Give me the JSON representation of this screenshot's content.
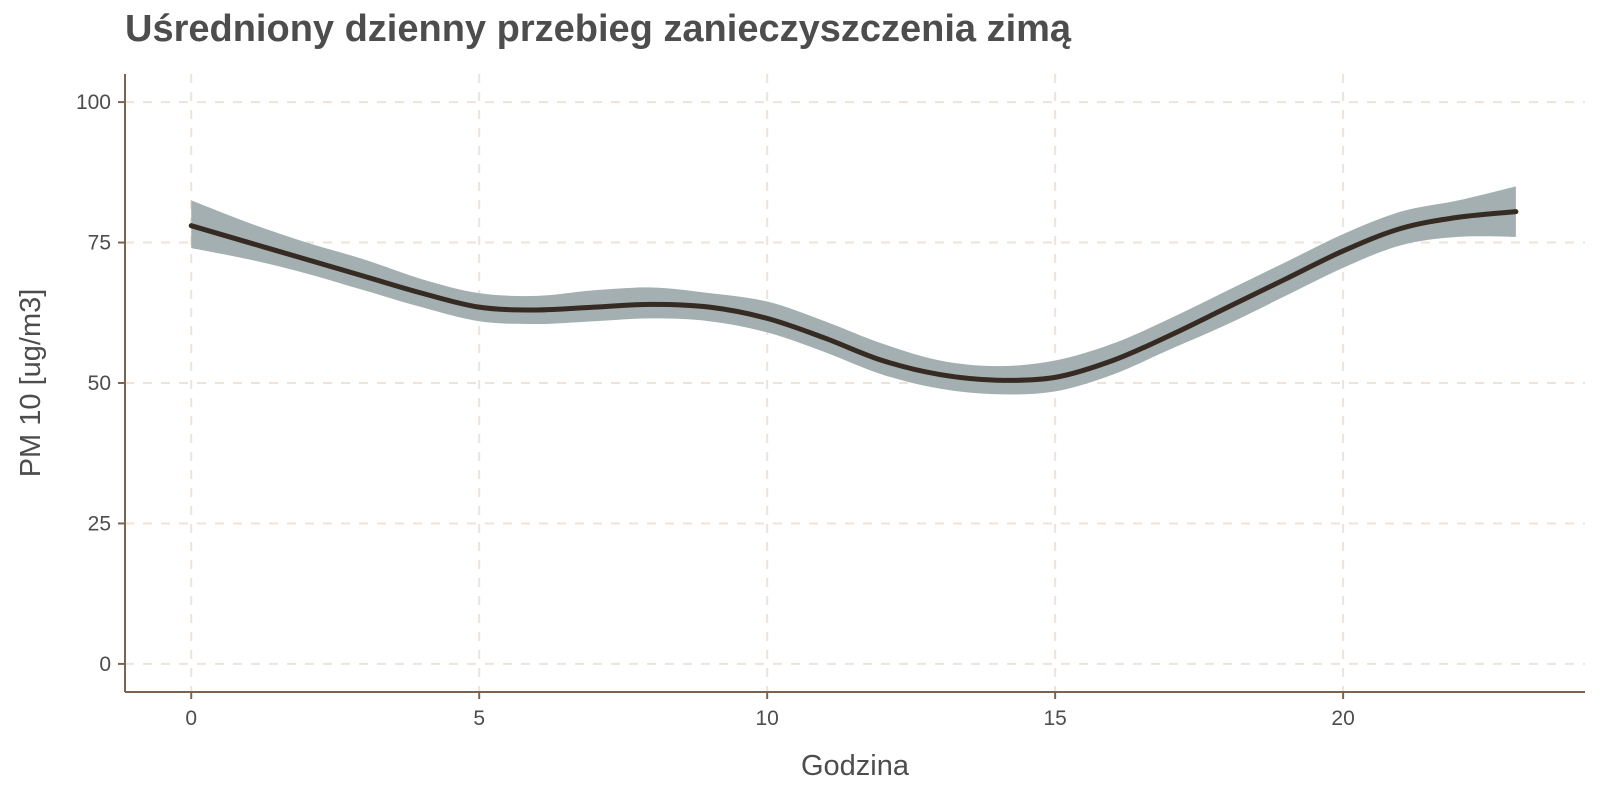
{
  "chart_data": {
    "type": "line",
    "title": "Uśredniony dzienny przebieg zanieczyszczenia zimą",
    "xlabel": "Godzina",
    "ylabel": "PM 10 [ug/m3]",
    "xlim": [
      -1.15,
      24.2
    ],
    "ylim": [
      -5,
      105
    ],
    "x_ticks": [
      0,
      5,
      10,
      15,
      20
    ],
    "y_ticks": [
      0,
      25,
      50,
      75,
      100
    ],
    "grid": true,
    "legend": "none",
    "colors": {
      "line": "#352b22",
      "band": "#a3afb1",
      "grid": "#ede3da",
      "axis": "#7b6350",
      "text": "#4d4d4d"
    },
    "series": [
      {
        "x": [
          0,
          1,
          2,
          3,
          4,
          5,
          6,
          7,
          8,
          9,
          10,
          11,
          12,
          13,
          14,
          15,
          16,
          17,
          18,
          19,
          20,
          21,
          22,
          23
        ],
        "y": [
          78,
          75,
          72,
          69,
          66,
          63.5,
          63,
          63.5,
          64,
          63.5,
          61.5,
          58,
          54,
          51.5,
          50.5,
          51,
          54,
          58.5,
          63.5,
          68.5,
          73.5,
          77.5,
          79.5,
          80.5
        ],
        "lower": [
          74,
          72,
          69.5,
          66.5,
          63.5,
          61,
          60.5,
          61,
          61.5,
          61,
          59,
          55.5,
          51.5,
          49,
          48,
          48.5,
          51.5,
          56,
          60.5,
          65.5,
          70.5,
          74.5,
          76,
          76
        ],
        "upper": [
          82.5,
          78.5,
          75,
          72,
          68.5,
          66,
          65.5,
          66.5,
          67,
          66,
          64.5,
          61,
          57,
          54,
          53,
          54,
          57,
          61.5,
          66.5,
          71.5,
          76.5,
          80.5,
          82.5,
          85
        ]
      }
    ]
  }
}
